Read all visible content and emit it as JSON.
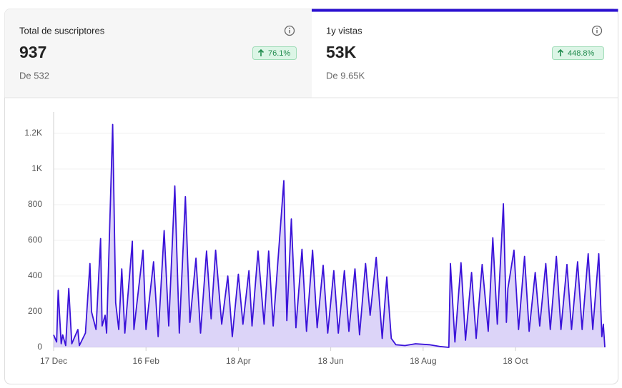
{
  "cards": [
    {
      "label": "Total de suscriptores",
      "value": "937",
      "change": "76.1%",
      "previous": "De 532"
    },
    {
      "label": "1y vistas",
      "value": "53K",
      "change": "448.8%",
      "previous": "De 9.65K"
    }
  ],
  "chart_data": {
    "type": "area",
    "color": "#3b13d9",
    "grid": true,
    "x": [
      "12-17",
      "12-19",
      "12-20",
      "12-22",
      "12-23",
      "12-25",
      "12-27",
      "12-29",
      "01-02",
      "01-03",
      "01-07",
      "01-10",
      "01-11",
      "01-14",
      "01-17",
      "01-18",
      "01-20",
      "01-21",
      "01-25",
      "01-27",
      "01-29",
      "01-31",
      "02-02",
      "02-07",
      "02-08",
      "02-14",
      "02-16",
      "02-21",
      "02-24",
      "02-28",
      "03-03",
      "03-07",
      "03-10",
      "03-14",
      "03-17",
      "03-21",
      "03-24",
      "03-28",
      "03-31",
      "04-03",
      "04-07",
      "04-11",
      "04-14",
      "04-18",
      "04-21",
      "04-25",
      "04-27",
      "05-01",
      "05-05",
      "05-08",
      "05-11",
      "05-18",
      "05-20",
      "05-23",
      "05-26",
      "05-30",
      "06-02",
      "06-06",
      "06-09",
      "06-13",
      "06-16",
      "06-20",
      "06-23",
      "06-27",
      "06-30",
      "07-04",
      "07-07",
      "07-11",
      "07-14",
      "07-18",
      "07-22",
      "07-25",
      "07-28",
      "07-31",
      "08-06",
      "08-13",
      "08-22",
      "08-29",
      "09-04",
      "09-05",
      "09-08",
      "09-12",
      "09-15",
      "09-19",
      "09-22",
      "09-26",
      "09-30",
      "10-03",
      "10-06",
      "10-10",
      "10-12",
      "10-13",
      "10-17",
      "10-20",
      "10-24",
      "10-27",
      "10-31",
      "11-03",
      "11-07",
      "11-10",
      "11-14",
      "11-17",
      "11-21",
      "11-24",
      "11-28",
      "12-01",
      "12-05",
      "12-08",
      "12-12",
      "12-14",
      "12-15",
      "12-16"
    ],
    "values": [
      70,
      30,
      320,
      20,
      70,
      10,
      330,
      20,
      100,
      10,
      80,
      470,
      200,
      100,
      610,
      120,
      180,
      80,
      1250,
      250,
      100,
      440,
      80,
      595,
      100,
      545,
      100,
      480,
      60,
      655,
      120,
      905,
      80,
      845,
      140,
      500,
      80,
      540,
      160,
      545,
      130,
      400,
      60,
      410,
      130,
      430,
      120,
      540,
      130,
      540,
      120,
      935,
      150,
      720,
      110,
      550,
      90,
      545,
      110,
      460,
      80,
      430,
      80,
      430,
      90,
      440,
      70,
      470,
      180,
      505,
      50,
      395,
      50,
      15,
      10,
      20,
      15,
      5,
      0,
      470,
      30,
      475,
      40,
      420,
      50,
      465,
      90,
      615,
      130,
      805,
      140,
      330,
      545,
      100,
      510,
      90,
      420,
      120,
      470,
      100,
      510,
      100,
      465,
      100,
      480,
      100,
      525,
      100,
      525,
      60,
      130,
      0
    ],
    "xlim": [
      "12-17",
      "12-16"
    ],
    "xticks": [
      {
        "value": "12-17",
        "label": "17 Dec"
      },
      {
        "value": "02-16",
        "label": "16 Feb"
      },
      {
        "value": "04-18",
        "label": "18 Apr"
      },
      {
        "value": "06-18",
        "label": "18 Jun"
      },
      {
        "value": "08-18",
        "label": "18 Aug"
      },
      {
        "value": "10-18",
        "label": "18 Oct"
      }
    ],
    "ylim": [
      0,
      1320
    ],
    "yticks": [
      0,
      200,
      400,
      600,
      800,
      {
        "value": 1000,
        "label": "1K"
      },
      {
        "value": 1200,
        "label": "1.2K"
      }
    ]
  }
}
